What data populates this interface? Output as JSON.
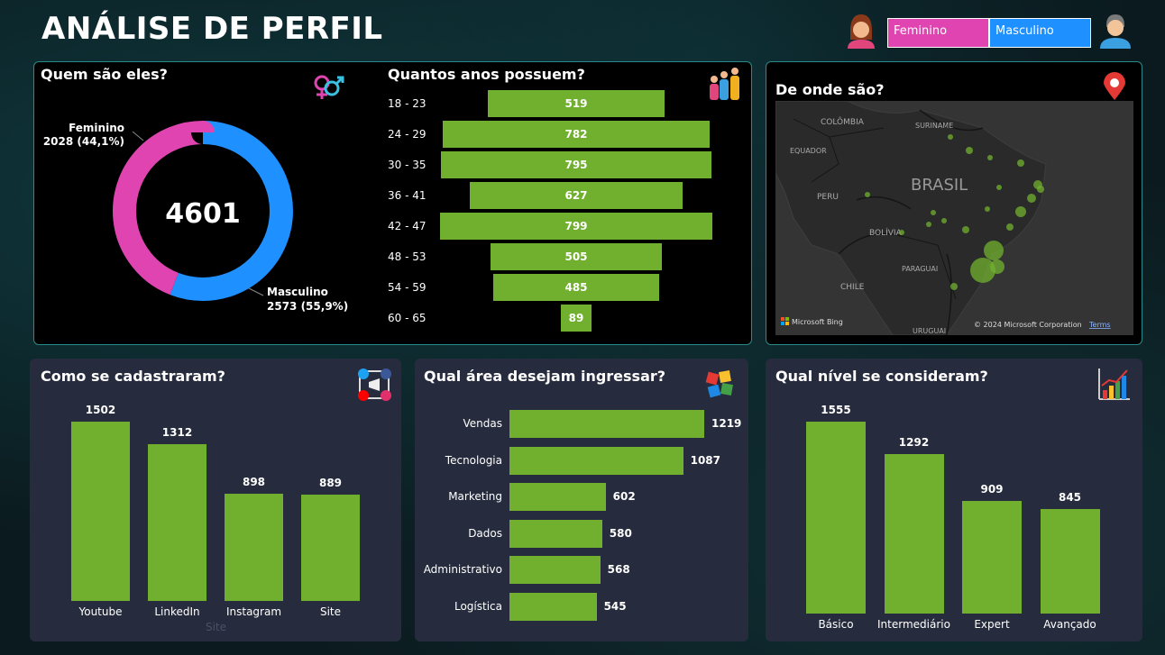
{
  "header": {
    "title": "ANÁLISE DE PERFIL",
    "legend_female": "Feminino",
    "legend_male": "Masculino"
  },
  "colors": {
    "female": "#e044b0",
    "male": "#1e90ff",
    "bar": "#71b02f"
  },
  "who": {
    "title": "Quem são eles?",
    "total": "4601",
    "female_label": "Feminino",
    "female_value": "2028 (44,1%)",
    "male_label": "Masculino",
    "male_value": "2573 (55,9%)"
  },
  "age": {
    "title": "Quantos anos possuem?"
  },
  "map": {
    "title": "De onde são?",
    "labels": {
      "colombia": "COLÔMBIA",
      "suriname": "SURINAME",
      "equador": "EQUADOR",
      "peru": "PERU",
      "brasil": "BRASIL",
      "bolivia": "BOLÍVIA",
      "paraguai": "PARAGUAI",
      "chile": "CHILE",
      "uruguai": "URUGUAI"
    },
    "bing": "Microsoft Bing",
    "copyright": "© 2024 Microsoft Corporation",
    "terms": "Terms"
  },
  "signup": {
    "title": "Como se cadastraram?",
    "ghost_label": "Site"
  },
  "area": {
    "title": "Qual área desejam ingressar?"
  },
  "level": {
    "title": "Qual nível se consideram?"
  },
  "chart_data": [
    {
      "type": "pie",
      "title": "Quem são eles?",
      "categories": [
        "Feminino",
        "Masculino"
      ],
      "values": [
        2028,
        2573
      ],
      "percentages": [
        44.1,
        55.9
      ]
    },
    {
      "type": "bar",
      "title": "Quantos anos possuem?",
      "categories": [
        "18 - 23",
        "24 - 29",
        "30 - 35",
        "36 - 41",
        "42 - 47",
        "48 - 53",
        "54 - 59",
        "60 - 65"
      ],
      "values": [
        519,
        782,
        795,
        627,
        799,
        505,
        485,
        89
      ]
    },
    {
      "type": "bar",
      "title": "Como se cadastraram?",
      "categories": [
        "Youtube",
        "LinkedIn",
        "Instagram",
        "Site"
      ],
      "values": [
        1502,
        1312,
        898,
        889
      ]
    },
    {
      "type": "bar",
      "title": "Qual área desejam ingressar?",
      "categories": [
        "Vendas",
        "Tecnologia",
        "Marketing",
        "Dados",
        "Administrativo",
        "Logística"
      ],
      "values": [
        1219,
        1087,
        602,
        580,
        568,
        545
      ]
    },
    {
      "type": "bar",
      "title": "Qual nível se consideram?",
      "categories": [
        "Básico",
        "Intermediário",
        "Expert",
        "Avançado"
      ],
      "values": [
        1555,
        1292,
        909,
        845
      ]
    }
  ]
}
